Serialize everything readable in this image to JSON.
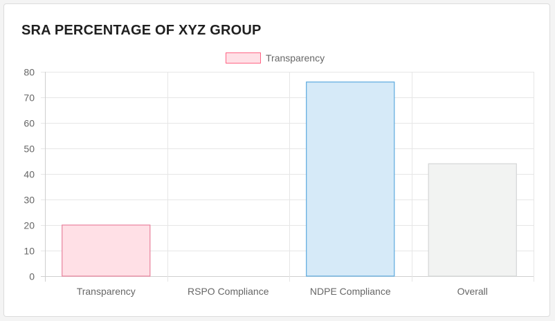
{
  "card": {
    "title": "SRA PERCENTAGE OF XYZ GROUP"
  },
  "chart_data": {
    "type": "bar",
    "title": "SRA PERCENTAGE OF XYZ GROUP",
    "categories": [
      "Transparency",
      "RSPO Compliance",
      "NDPE Compliance",
      "Overall"
    ],
    "values": [
      20,
      0,
      76,
      44
    ],
    "series": [
      {
        "name": "Transparency",
        "values": [
          20,
          0,
          76,
          44
        ]
      }
    ],
    "legend": {
      "label": "Transparency",
      "position": "top",
      "fill": "#ffe0e6",
      "stroke": "#ff6384"
    },
    "bar_colors": [
      {
        "fill": "#ffe0e6",
        "stroke": "#e8819c"
      },
      {
        "fill": "#ffe8cf",
        "stroke": "#ff9f40"
      },
      {
        "fill": "#d6eaf8",
        "stroke": "#5aa9de"
      },
      {
        "fill": "#f2f3f2",
        "stroke": "#d4d6d6"
      }
    ],
    "xlabel": "",
    "ylabel": "",
    "ylim": [
      0,
      80
    ],
    "yticks": [
      0,
      10,
      20,
      30,
      40,
      50,
      60,
      70,
      80
    ],
    "grid": true
  }
}
